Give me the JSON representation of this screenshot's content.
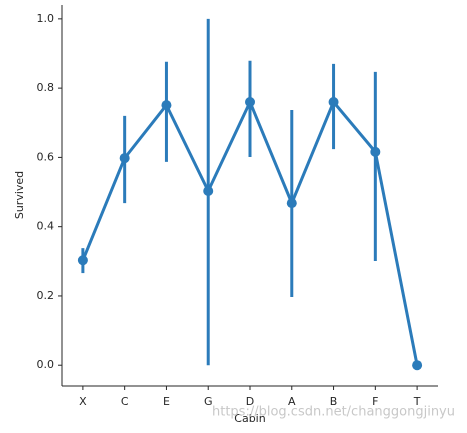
{
  "chart_data": {
    "type": "pointplot",
    "x_label": "Cabin",
    "y_label": "Survived",
    "categories": [
      "X",
      "C",
      "E",
      "G",
      "D",
      "A",
      "B",
      "F",
      "T"
    ],
    "values": [
      0.303,
      0.598,
      0.751,
      0.503,
      0.76,
      0.468,
      0.76,
      0.616,
      0
    ],
    "ci_low": [
      0.266,
      0.468,
      0.587,
      0,
      0.601,
      0.197,
      0.624,
      0.301,
      0
    ],
    "ci_high": [
      0.338,
      0.72,
      0.876,
      1.0,
      0.879,
      0.737,
      0.87,
      0.847,
      0
    ],
    "color": "#2b7bba",
    "ylim": [
      -0.06,
      1.04
    ],
    "yticks": [
      {
        "value": 0,
        "label": "0.0"
      },
      0.2,
      0.4,
      0.6,
      0.8,
      {
        "value": 1,
        "label": "1.0"
      }
    ],
    "watermark": "https://blog.csdn.net/changgongjinyu"
  }
}
